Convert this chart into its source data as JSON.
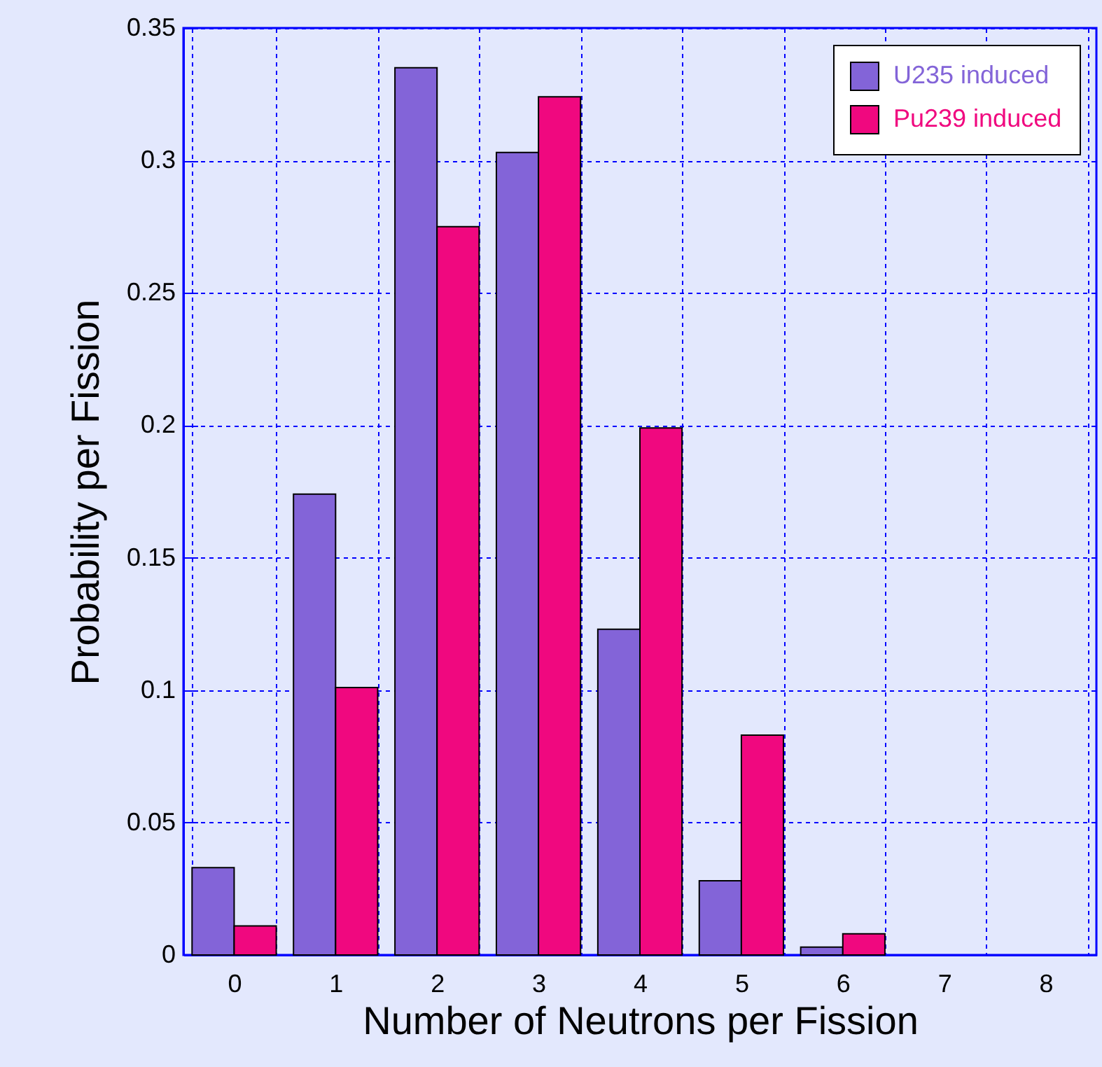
{
  "chart_data": {
    "type": "bar",
    "xlabel": "Number of Neutrons per Fission",
    "ylabel": "Probability per Fission",
    "categories": [
      "0",
      "1",
      "2",
      "3",
      "4",
      "5",
      "6",
      "7",
      "8"
    ],
    "series": [
      {
        "name": "U235 induced",
        "color": "#8364d8",
        "values": [
          0.033,
          0.174,
          0.335,
          0.303,
          0.123,
          0.028,
          0.003,
          0,
          0
        ]
      },
      {
        "name": "Pu239 induced",
        "color": "#f0087f",
        "values": [
          0.011,
          0.101,
          0.275,
          0.324,
          0.199,
          0.083,
          0.008,
          0,
          0
        ]
      }
    ],
    "ylim": [
      0,
      0.35
    ],
    "yticks": [
      0,
      0.05,
      0.1,
      0.15,
      0.2,
      0.25,
      0.3,
      0.35
    ],
    "grid": true,
    "legend": "top right"
  }
}
